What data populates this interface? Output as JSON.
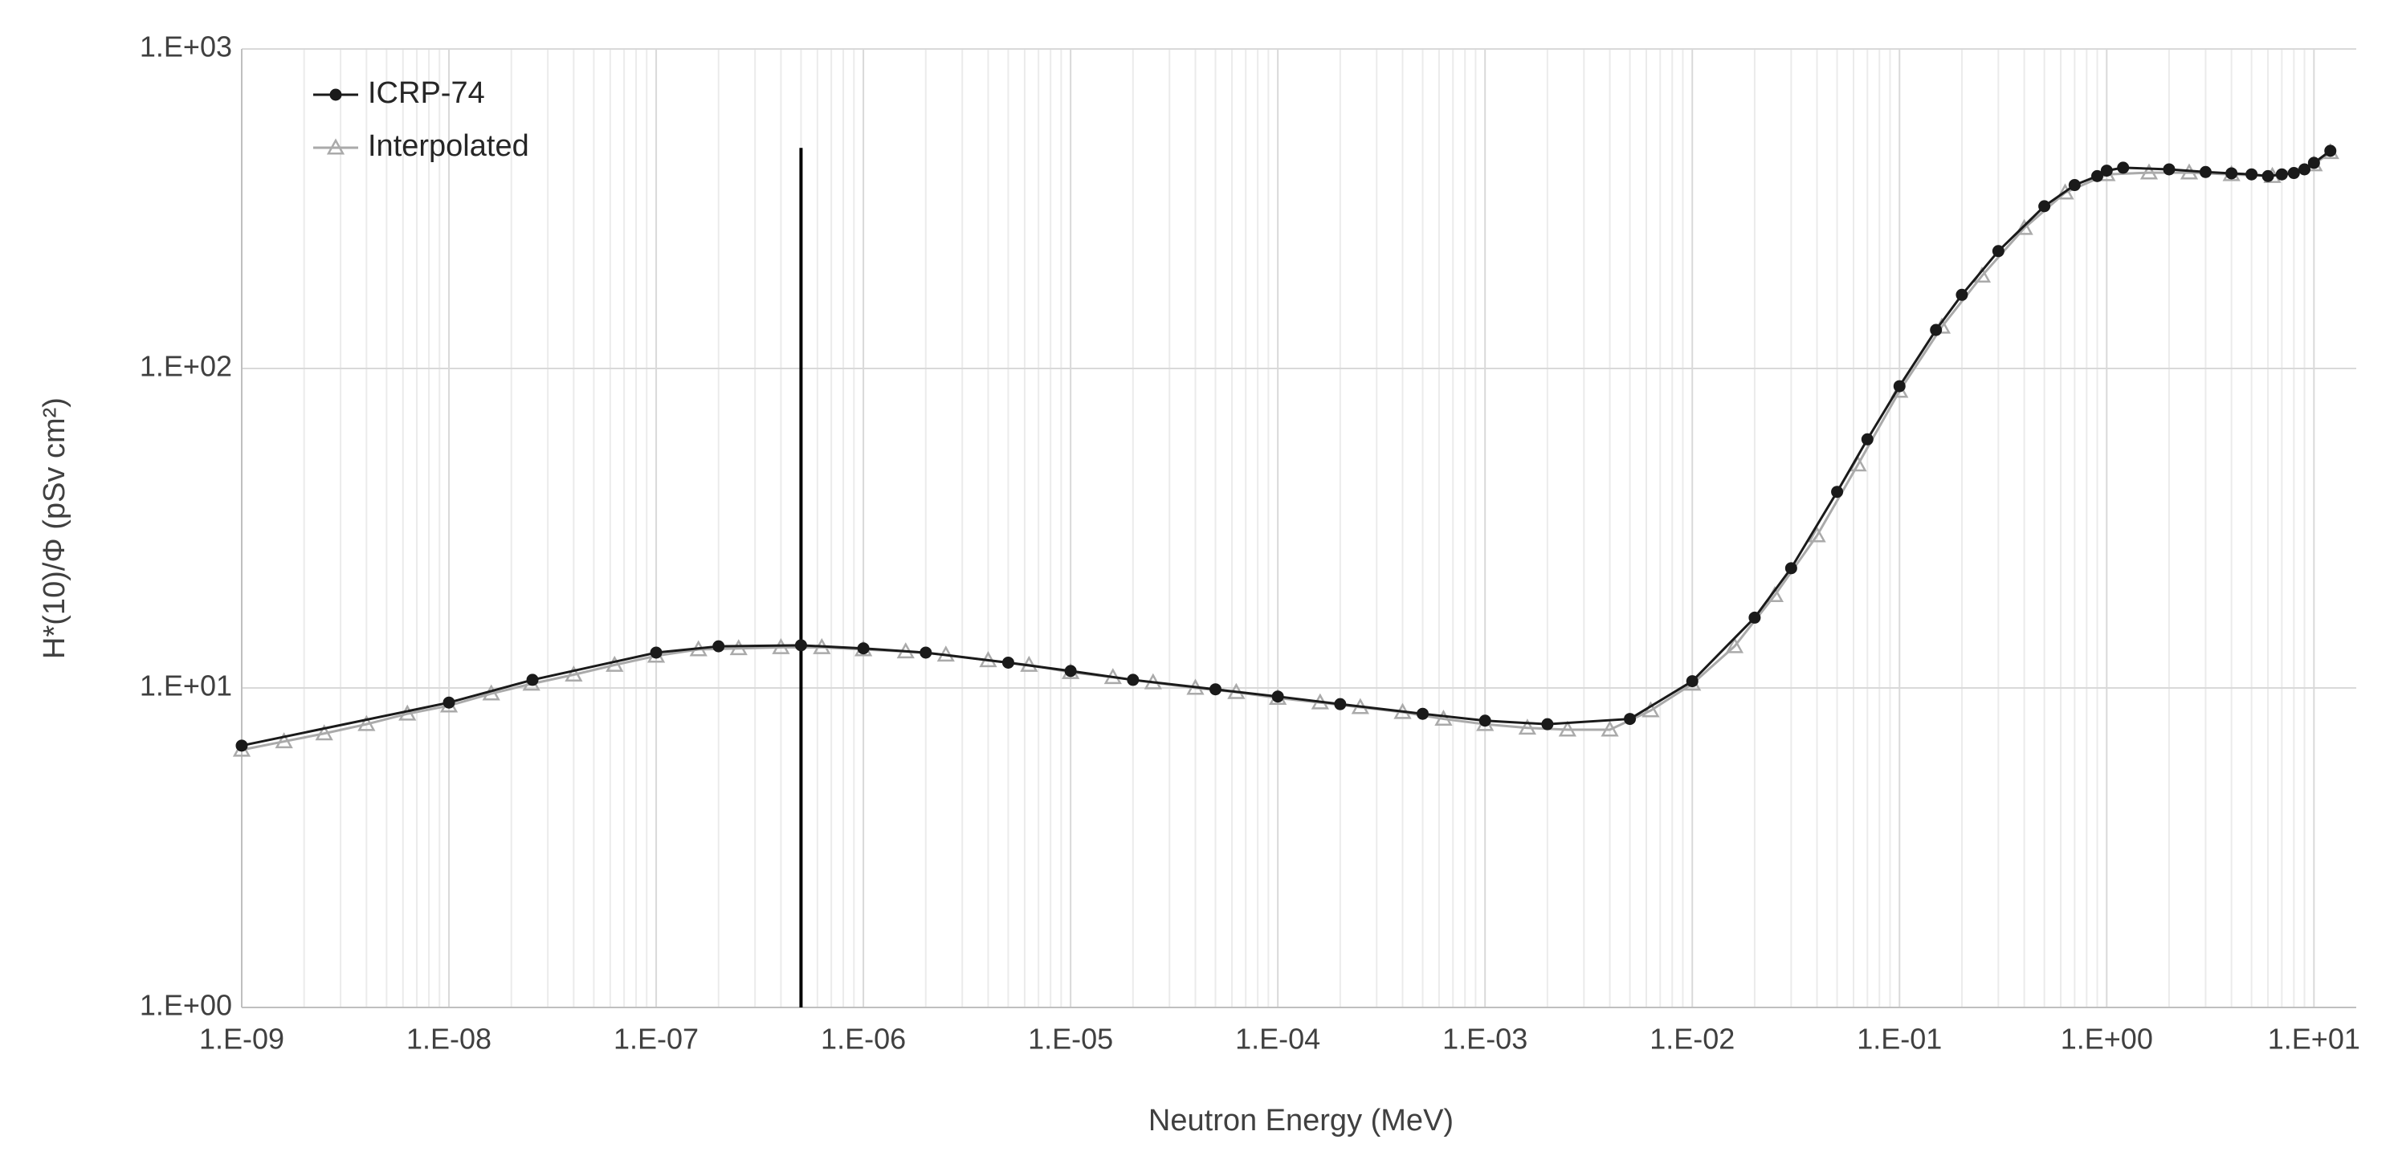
{
  "chart_data": {
    "type": "line",
    "x_label": "Neutron Energy (MeV)",
    "y_label": "H*(10)/Φ (pSv cm²)",
    "xscale": "log",
    "yscale": "log",
    "xlim": [
      1e-09,
      16
    ],
    "ylim": [
      1,
      1000
    ],
    "xticks": [
      {
        "value": 1e-09,
        "label": "1.E-09"
      },
      {
        "value": 1e-08,
        "label": "1.E-08"
      },
      {
        "value": 1e-07,
        "label": "1.E-07"
      },
      {
        "value": 1e-06,
        "label": "1.E-06"
      },
      {
        "value": 1e-05,
        "label": "1.E-05"
      },
      {
        "value": 0.0001,
        "label": "1.E-04"
      },
      {
        "value": 0.001,
        "label": "1.E-03"
      },
      {
        "value": 0.01,
        "label": "1.E-02"
      },
      {
        "value": 0.1,
        "label": "1.E-01"
      },
      {
        "value": 1,
        "label": "1.E+00"
      },
      {
        "value": 10,
        "label": "1.E+01"
      }
    ],
    "yticks": [
      {
        "value": 1,
        "label": "1.E+00"
      },
      {
        "value": 10,
        "label": "1.E+01"
      },
      {
        "value": 100,
        "label": "1.E+02"
      },
      {
        "value": 1000,
        "label": "1.E+03"
      }
    ],
    "grid": true,
    "minor_grid": true,
    "legend": "top-left",
    "reference_line": {
      "x": 5e-07,
      "y": [
        1,
        490
      ],
      "color": "#000000"
    },
    "series": [
      {
        "name": "ICRP-74",
        "color": "#1a1a1a",
        "marker": "circle",
        "x": [
          1e-09,
          1e-08,
          2.53e-08,
          1e-07,
          2e-07,
          5e-07,
          1e-06,
          2e-06,
          5e-06,
          1e-05,
          2e-05,
          5e-05,
          0.0001,
          0.0002,
          0.0005,
          0.001,
          0.002,
          0.005,
          0.01,
          0.02,
          0.03,
          0.05,
          0.07,
          0.1,
          0.15,
          0.2,
          0.3,
          0.5,
          0.7,
          0.9,
          1,
          1.2,
          2,
          3,
          4,
          5,
          6,
          7,
          8,
          9,
          10,
          12
        ],
        "values": [
          6.6,
          9.0,
          10.6,
          12.9,
          13.5,
          13.6,
          13.3,
          12.9,
          12.0,
          11.3,
          10.6,
          9.9,
          9.4,
          8.9,
          8.3,
          7.9,
          7.7,
          8.0,
          10.5,
          16.6,
          23.7,
          41.1,
          60.0,
          88.0,
          132,
          170,
          233,
          322,
          375,
          400,
          416,
          425,
          420,
          412,
          408,
          405,
          400,
          405,
          409,
          420,
          440,
          480
        ]
      },
      {
        "name": "Interpolated",
        "color": "#aaaaaa",
        "marker": "triangle",
        "x": [
          1e-09,
          1.6e-09,
          2.5e-09,
          4e-09,
          6.3e-09,
          1e-08,
          1.6e-08,
          2.5e-08,
          4e-08,
          6.3e-08,
          1e-07,
          1.6e-07,
          2.5e-07,
          4e-07,
          6.3e-07,
          1e-06,
          1.6e-06,
          2.5e-06,
          4e-06,
          6.3e-06,
          1e-05,
          1.6e-05,
          2.5e-05,
          4e-05,
          6.3e-05,
          0.0001,
          0.00016,
          0.00025,
          0.0004,
          0.00063,
          0.001,
          0.0016,
          0.0025,
          0.004,
          0.0063,
          0.01,
          0.016,
          0.025,
          0.04,
          0.063,
          0.1,
          0.16,
          0.25,
          0.4,
          0.63,
          1,
          1.6,
          2.5,
          4,
          6.3,
          10,
          12
        ],
        "values": [
          6.4,
          6.8,
          7.2,
          7.7,
          8.3,
          8.8,
          9.6,
          10.3,
          11.0,
          11.8,
          12.6,
          13.2,
          13.3,
          13.4,
          13.4,
          13.2,
          13.0,
          12.7,
          12.2,
          11.8,
          11.2,
          10.8,
          10.4,
          10.0,
          9.7,
          9.3,
          9.0,
          8.7,
          8.4,
          8.0,
          7.7,
          7.5,
          7.4,
          7.4,
          8.5,
          10.3,
          13.5,
          19.5,
          30,
          50,
          85,
          135,
          195,
          275,
          355,
          405,
          410,
          410,
          405,
          400,
          435,
          475
        ]
      }
    ]
  }
}
